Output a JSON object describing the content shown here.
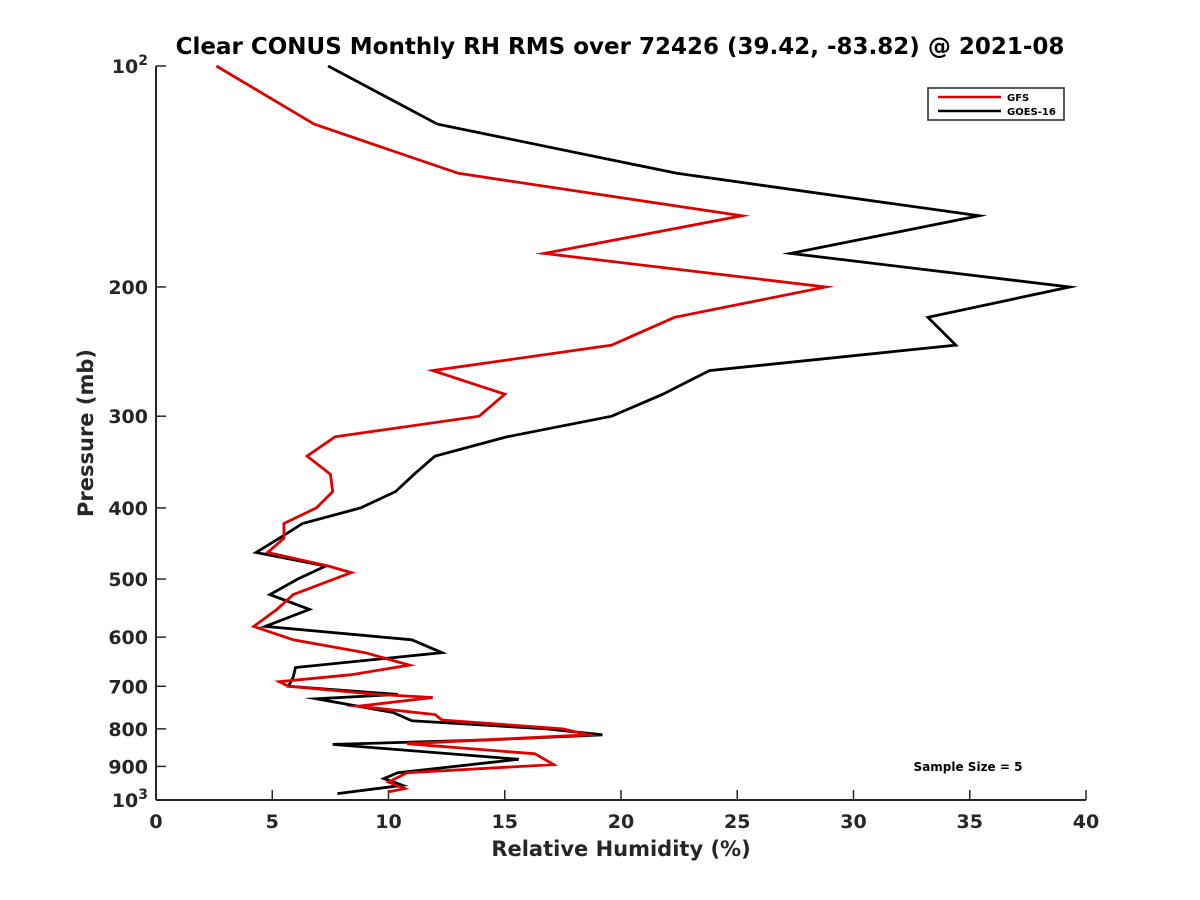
{
  "chart_data": {
    "type": "line",
    "title": "Clear CONUS Monthly RH RMS over 72426 (39.42, -83.82) @ 2021-08",
    "xlabel": "Relative Humidity (%)",
    "ylabel": "Pressure (mb)",
    "xlim": [
      0,
      40
    ],
    "ylim": [
      100,
      1000
    ],
    "yscale": "log",
    "yreverse": true,
    "grid": false,
    "legend_position": "top-right",
    "xticks": [
      0,
      5,
      10,
      15,
      20,
      25,
      30,
      35,
      40
    ],
    "xtick_labels": [
      "0",
      "5",
      "10",
      "15",
      "20",
      "25",
      "30",
      "35",
      "40"
    ],
    "yticks": [
      100,
      200,
      300,
      400,
      500,
      600,
      700,
      800,
      900,
      1000
    ],
    "ytick_labels": [
      {
        "base": "10",
        "exp": "2"
      },
      {
        "base": "200"
      },
      {
        "base": "300"
      },
      {
        "base": "400"
      },
      {
        "base": "500"
      },
      {
        "base": "600"
      },
      {
        "base": "700"
      },
      {
        "base": "800"
      },
      {
        "base": "900"
      },
      {
        "base": "10",
        "exp": "3"
      }
    ],
    "annotation": "Sample Size = 5",
    "series": [
      {
        "name": "GFS",
        "color": "#e00000",
        "points": [
          [
            2.6,
            100
          ],
          [
            6.8,
            120
          ],
          [
            13.0,
            140
          ],
          [
            25.2,
            160
          ],
          [
            16.7,
            180
          ],
          [
            28.8,
            200
          ],
          [
            22.3,
            220
          ],
          [
            19.6,
            240
          ],
          [
            11.9,
            260
          ],
          [
            15.0,
            280
          ],
          [
            13.9,
            300
          ],
          [
            7.7,
            320
          ],
          [
            6.5,
            340
          ],
          [
            7.5,
            360
          ],
          [
            7.6,
            380
          ],
          [
            6.9,
            400
          ],
          [
            5.5,
            420
          ],
          [
            5.5,
            440
          ],
          [
            4.8,
            460
          ],
          [
            7.4,
            480
          ],
          [
            8.4,
            490
          ],
          [
            5.9,
            525
          ],
          [
            5.2,
            550
          ],
          [
            4.2,
            580
          ],
          [
            5.9,
            605
          ],
          [
            9.0,
            630
          ],
          [
            10.9,
            655
          ],
          [
            8.4,
            675
          ],
          [
            5.3,
            690
          ],
          [
            5.7,
            700
          ],
          [
            9.5,
            718
          ],
          [
            11.9,
            725
          ],
          [
            8.7,
            745
          ],
          [
            12.0,
            765
          ],
          [
            12.3,
            778
          ],
          [
            17.5,
            800
          ],
          [
            18.6,
            815
          ],
          [
            10.8,
            838
          ],
          [
            16.3,
            865
          ],
          [
            17.1,
            895
          ],
          [
            10.8,
            918
          ],
          [
            10.0,
            945
          ],
          [
            10.7,
            965
          ],
          [
            10.0,
            975
          ]
        ]
      },
      {
        "name": "GOES-16",
        "color": "#000000",
        "points": [
          [
            7.4,
            100
          ],
          [
            12.1,
            120
          ],
          [
            22.4,
            140
          ],
          [
            35.4,
            160
          ],
          [
            27.3,
            180
          ],
          [
            39.3,
            200
          ],
          [
            33.2,
            220
          ],
          [
            34.4,
            240
          ],
          [
            23.8,
            260
          ],
          [
            21.8,
            280
          ],
          [
            19.6,
            300
          ],
          [
            15.1,
            320
          ],
          [
            12.0,
            340
          ],
          [
            11.1,
            360
          ],
          [
            10.3,
            380
          ],
          [
            8.8,
            400
          ],
          [
            6.3,
            420
          ],
          [
            5.3,
            440
          ],
          [
            4.3,
            460
          ],
          [
            7.3,
            480
          ],
          [
            6.1,
            500
          ],
          [
            4.9,
            525
          ],
          [
            6.6,
            550
          ],
          [
            4.7,
            580
          ],
          [
            11.0,
            605
          ],
          [
            12.3,
            630
          ],
          [
            6.0,
            660
          ],
          [
            5.9,
            680
          ],
          [
            5.7,
            700
          ],
          [
            10.4,
            718
          ],
          [
            6.9,
            728
          ],
          [
            10.2,
            760
          ],
          [
            11.0,
            780
          ],
          [
            16.8,
            800
          ],
          [
            19.2,
            815
          ],
          [
            14.4,
            828
          ],
          [
            7.6,
            840
          ],
          [
            15.6,
            880
          ],
          [
            10.4,
            918
          ],
          [
            9.8,
            935
          ],
          [
            10.6,
            955
          ],
          [
            7.8,
            980
          ]
        ]
      }
    ]
  }
}
